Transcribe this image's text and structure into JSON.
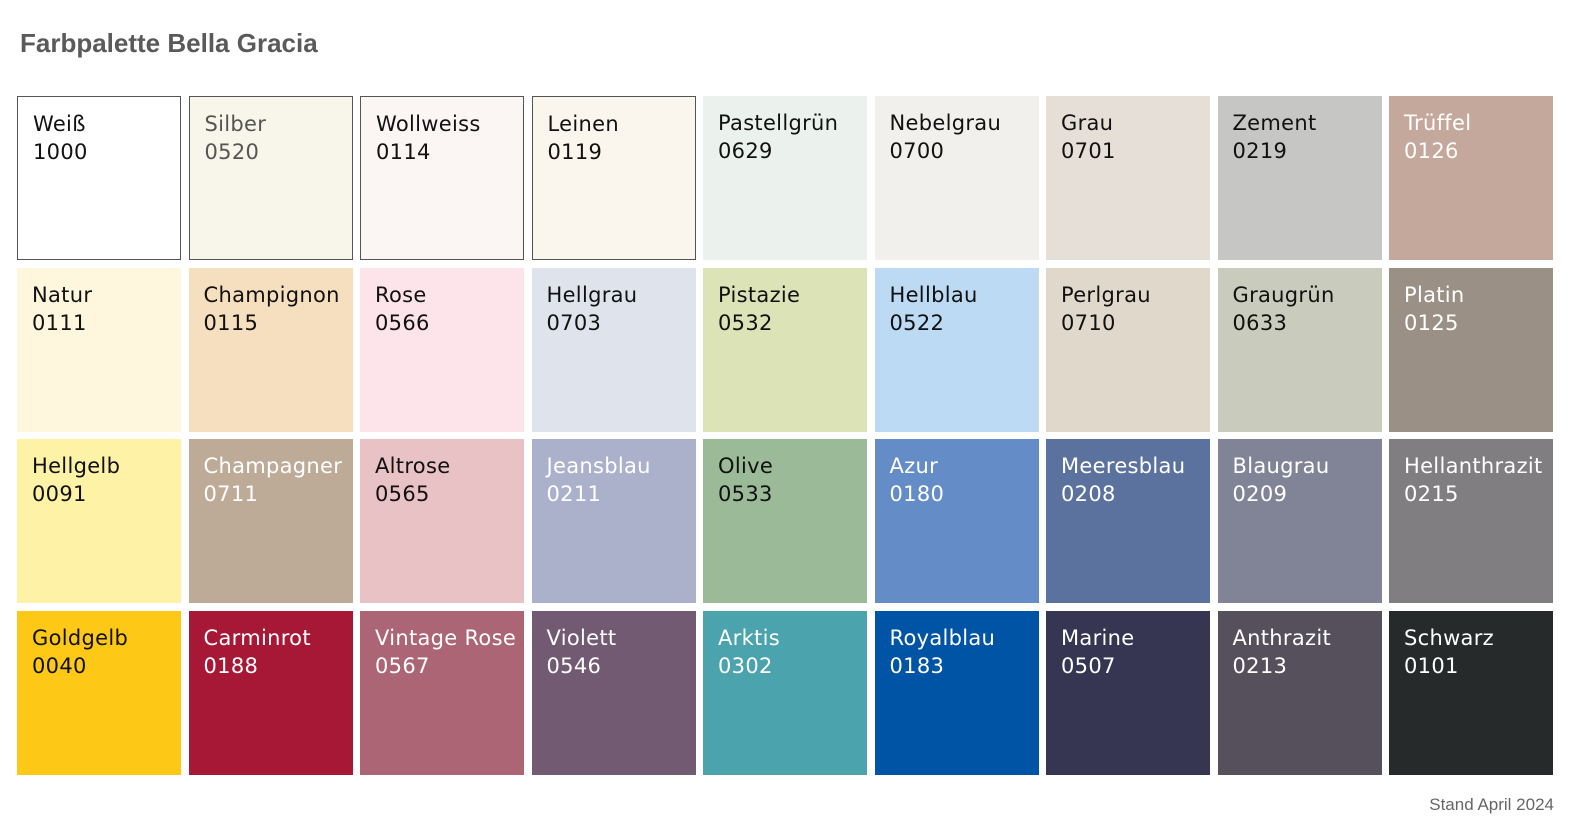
{
  "header": {
    "title": "Farbpalette Bella Gracia"
  },
  "swatches": [
    {
      "name": "Weiß",
      "code": "1000",
      "color": "#ffffff",
      "text_color": "#111111",
      "border": true
    },
    {
      "name": "Silber",
      "code": "0520",
      "color": "#f8f5ea",
      "text_color": "#555555",
      "border": true
    },
    {
      "name": "Wollweiss",
      "code": "0114",
      "color": "#fbf5f3",
      "text_color": "#111111",
      "border": true
    },
    {
      "name": "Leinen",
      "code": "0119",
      "color": "#faf6ee",
      "text_color": "#111111",
      "border": true
    },
    {
      "name": "Pastellgrün",
      "code": "0629",
      "color": "#ebf2ee",
      "text_color": "#111111"
    },
    {
      "name": "Nebelgrau",
      "code": "0700",
      "color": "#f1f0ec",
      "text_color": "#111111"
    },
    {
      "name": "Grau",
      "code": "0701",
      "color": "#e6dfd8",
      "text_color": "#111111"
    },
    {
      "name": "Zement",
      "code": "0219",
      "color": "#c6c6c4",
      "text_color": "#111111"
    },
    {
      "name": "Trüffel",
      "code": "0126",
      "color": "#c4a89b",
      "text_color": "#ffffff"
    },
    {
      "name": "Natur",
      "code": "0111",
      "color": "#fef6dd",
      "text_color": "#111111"
    },
    {
      "name": "Champignon",
      "code": "0115",
      "color": "#f5dfbf",
      "text_color": "#111111"
    },
    {
      "name": "Rose",
      "code": "0566",
      "color": "#fde4ea",
      "text_color": "#111111"
    },
    {
      "name": "Hellgrau",
      "code": "0703",
      "color": "#dfe4ec",
      "text_color": "#111111"
    },
    {
      "name": "Pistazie",
      "code": "0532",
      "color": "#dce3b6",
      "text_color": "#111111"
    },
    {
      "name": "Hellblau",
      "code": "0522",
      "color": "#bcdaf3",
      "text_color": "#111111"
    },
    {
      "name": "Perlgrau",
      "code": "0710",
      "color": "#e0d9cb",
      "text_color": "#111111"
    },
    {
      "name": "Graugrün",
      "code": "0633",
      "color": "#c9cbbc",
      "text_color": "#111111"
    },
    {
      "name": "Platin",
      "code": "0125",
      "color": "#9b9085",
      "text_color": "#ffffff"
    },
    {
      "name": "Hellgelb",
      "code": "0091",
      "color": "#fdf2a6",
      "text_color": "#111111"
    },
    {
      "name": "Champagner",
      "code": "0711",
      "color": "#bdab98",
      "text_color": "#ffffff"
    },
    {
      "name": "Altrose",
      "code": "0565",
      "color": "#e8c2c4",
      "text_color": "#111111"
    },
    {
      "name": "Jeansblau",
      "code": "0211",
      "color": "#abb1cb",
      "text_color": "#ffffff"
    },
    {
      "name": "Olive",
      "code": "0533",
      "color": "#9bba98",
      "text_color": "#111111"
    },
    {
      "name": "Azur",
      "code": "0180",
      "color": "#648dc8",
      "text_color": "#ffffff"
    },
    {
      "name": "Meeresblau",
      "code": "0208",
      "color": "#5b729e",
      "text_color": "#ffffff"
    },
    {
      "name": "Blaugrau",
      "code": "0209",
      "color": "#818496",
      "text_color": "#ffffff"
    },
    {
      "name": "Hellanthrazit",
      "code": "0215",
      "color": "#807e80",
      "text_color": "#ffffff"
    },
    {
      "name": "Goldgelb",
      "code": "0040",
      "color": "#fdc916",
      "text_color": "#111111"
    },
    {
      "name": "Carminrot",
      "code": "0188",
      "color": "#a71836",
      "text_color": "#ffffff"
    },
    {
      "name": "Vintage Rose",
      "code": "0567",
      "color": "#ac6575",
      "text_color": "#ffffff"
    },
    {
      "name": "Violett",
      "code": "0546",
      "color": "#725a72",
      "text_color": "#ffffff"
    },
    {
      "name": "Arktis",
      "code": "0302",
      "color": "#4ba3ad",
      "text_color": "#ffffff"
    },
    {
      "name": "Royalblau",
      "code": "0183",
      "color": "#0054a5",
      "text_color": "#ffffff"
    },
    {
      "name": "Marine",
      "code": "0507",
      "color": "#363552",
      "text_color": "#ffffff"
    },
    {
      "name": "Anthrazit",
      "code": "0213",
      "color": "#55505c",
      "text_color": "#ffffff"
    },
    {
      "name": "Schwarz",
      "code": "0101",
      "color": "#262a2a",
      "text_color": "#ffffff"
    }
  ],
  "footer": {
    "note": "Stand April 2024"
  }
}
